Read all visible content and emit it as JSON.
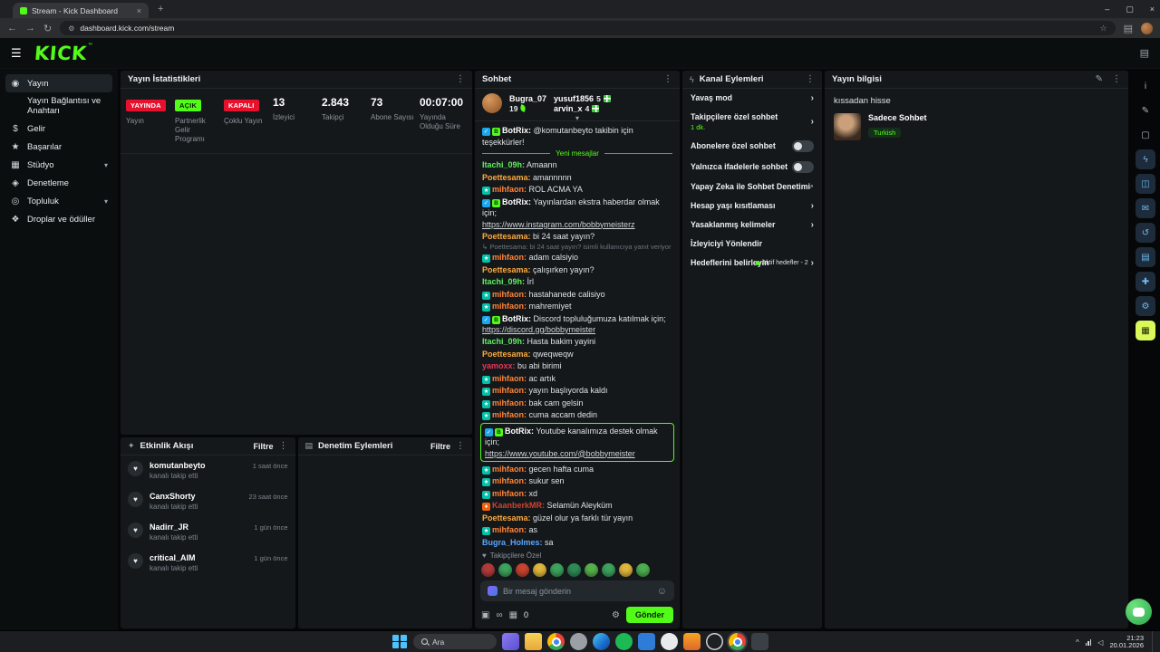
{
  "browser": {
    "tab_title": "Stream - Kick Dashboard",
    "url": "dashboard.kick.com/stream"
  },
  "icons": {
    "back": "←",
    "forward": "→",
    "refresh": "↻",
    "site": "⚙",
    "star": "☆",
    "new_tab": "+",
    "close_tab": "×",
    "minimize": "–",
    "maximize": "▢",
    "close": "×",
    "hamburger": "☰",
    "layout": "▤",
    "dots": "⋮",
    "chevron_down": "▾",
    "activity": "✦",
    "moderation_grid": "▤",
    "actions_bolt": "ϟ",
    "pencil": "✎",
    "heart": "♥",
    "collapse": "▾",
    "smiley": "☺",
    "infinity": "∞",
    "calendar": "▦",
    "gear": "⚙",
    "identity": "▣",
    "caret_up": "^",
    "speaker": "◁"
  },
  "page_header": {
    "logo": "KICK",
    "logo_tm": "™"
  },
  "sidebar": {
    "items": [
      {
        "icon": "broadcast",
        "label": "Yayın",
        "state": "active"
      },
      {
        "label": "Yayın Bağlantısı ve Anahtarı"
      },
      {
        "icon": "revenue",
        "label": "Gelir"
      },
      {
        "icon": "achievements",
        "label": "Başarılar"
      },
      {
        "icon": "studio",
        "label": "Stüdyo",
        "chevron": true
      },
      {
        "icon": "moderation",
        "label": "Denetleme"
      },
      {
        "icon": "community",
        "label": "Topluluk",
        "chevron": true
      },
      {
        "icon": "drops",
        "label": "Droplar ve ödüller"
      }
    ]
  },
  "stats": {
    "title": "Yayın İstatistikleri",
    "items": [
      {
        "badge": "YAYINDA",
        "badge_type": "red",
        "label": "Yayın"
      },
      {
        "badge": "AÇIK",
        "badge_type": "green",
        "label": "Partnerlik Gelir Programı"
      },
      {
        "badge": "KAPALI",
        "badge_type": "red",
        "label": "Çoklu Yayın"
      },
      {
        "value": "13",
        "label": "İzleyici"
      },
      {
        "value": "2.843",
        "label": "Takipçi"
      },
      {
        "value": "73",
        "label": "Abone Sayısı"
      },
      {
        "value": "00:07:00",
        "label": "Yayında Olduğu Süre"
      }
    ]
  },
  "activity": {
    "title": "Etkinlik Akışı",
    "filter": "Filtre",
    "events": [
      {
        "user": "komutanbeyto",
        "action": "kanalı takip etti",
        "time": "1 saat önce"
      },
      {
        "user": "CanxShorty",
        "action": "kanalı takip etti",
        "time": "23 saat önce"
      },
      {
        "user": "Nadirr_JR",
        "action": "kanalı takip etti",
        "time": "1 gün önce"
      },
      {
        "user": "critical_AIM",
        "action": "kanalı takip etti",
        "time": "1 gün önce"
      }
    ]
  },
  "moderation": {
    "title": "Denetim Eylemleri",
    "filter": "Filtre"
  },
  "chat": {
    "title": "Sohbet",
    "leaderboard": {
      "top_user": "Bugra_07",
      "top_value": "19",
      "others": [
        {
          "name": "yusuf1856",
          "value": "5"
        },
        {
          "name": "arvin_x",
          "value": "4"
        }
      ]
    },
    "messages": [
      {
        "type": "bot",
        "user": "BotRix",
        "text": "@komutanbeyto takibin için teşekkürler!"
      },
      {
        "type": "divider",
        "text": "Yeni mesajlar"
      },
      {
        "type": "msg",
        "user": "Itachi_09h",
        "color": "#5ef15e",
        "text": "Amaann"
      },
      {
        "type": "msg",
        "user": "Poettesama",
        "color": "#fcaa3d",
        "text": "amannnnn"
      },
      {
        "type": "msg",
        "user": "mihfaon",
        "color": "#ff8438",
        "badge": "sub",
        "text": "ROL ACMA YA"
      },
      {
        "type": "bot",
        "user": "BotRix",
        "text": "Yayınlardan ekstra haberdar olmak için;",
        "link": "https://www.instagram.com/bobbymeisterz"
      },
      {
        "type": "msg",
        "user": "Poettesama",
        "color": "#fcaa3d",
        "text": "bi 24 saat yayın?"
      },
      {
        "type": "msg",
        "user": "mihfaon",
        "color": "#ff8438",
        "badge": "sub",
        "reply": "Poettesama: bi 24 saat yayın? isimli kullanıcıya yanıt veriyor",
        "text": "adam calsiyio"
      },
      {
        "type": "msg",
        "user": "Poettesama",
        "color": "#fcaa3d",
        "text": "çalışırken yayın?"
      },
      {
        "type": "msg",
        "user": "Itachi_09h",
        "color": "#5ef15e",
        "text": "İrl"
      },
      {
        "type": "msg",
        "user": "mihfaon",
        "color": "#ff8438",
        "badge": "sub",
        "text": "hastahanede calisiyo"
      },
      {
        "type": "msg",
        "user": "mihfaon",
        "color": "#ff8438",
        "badge": "sub",
        "text": "mahremiyet"
      },
      {
        "type": "bot",
        "user": "BotRix",
        "text": "Discord topluluğumuza katılmak için;",
        "link": "https://discord.gg/bobbymeister"
      },
      {
        "type": "msg",
        "user": "Itachi_09h",
        "color": "#5ef15e",
        "text": "Hasta bakim yayini"
      },
      {
        "type": "msg",
        "user": "Poettesama",
        "color": "#fcaa3d",
        "text": "qweqweqw"
      },
      {
        "type": "msg",
        "user": "yamoxx",
        "color": "#e0395c",
        "text": "bu abi birimi"
      },
      {
        "type": "msg",
        "user": "mihfaon",
        "color": "#ff8438",
        "badge": "sub",
        "text": "ac artık"
      },
      {
        "type": "msg",
        "user": "mihfaon",
        "color": "#ff8438",
        "badge": "sub",
        "text": "yayın başlıyorda kaldı"
      },
      {
        "type": "msg",
        "user": "mihfaon",
        "color": "#ff8438",
        "badge": "sub",
        "text": "bak cam gelsin"
      },
      {
        "type": "msg",
        "user": "mihfaon",
        "color": "#ff8438",
        "badge": "sub",
        "text": "cuma accam dedin"
      },
      {
        "type": "bot",
        "user": "BotRix",
        "highlight": true,
        "text": "Youtube kanalımıza destek olmak için;",
        "link": "https://www.youtube.com/@bobbymeister"
      },
      {
        "type": "msg",
        "user": "mihfaon",
        "color": "#ff8438",
        "badge": "sub",
        "text": "gecen hafta cuma"
      },
      {
        "type": "msg",
        "user": "mihfaon",
        "color": "#ff8438",
        "badge": "sub",
        "text": "sukur sen"
      },
      {
        "type": "msg",
        "user": "mihfaon",
        "color": "#ff8438",
        "badge": "sub",
        "text": "xd"
      },
      {
        "type": "msg",
        "user": "KaanberkMR",
        "color": "#cf4330",
        "badge": "fire",
        "text": "Selamün Aleyküm"
      },
      {
        "type": "msg",
        "user": "Poettesama",
        "color": "#fcaa3d",
        "text": "güzel olur ya farklı tür yayın"
      },
      {
        "type": "msg",
        "user": "mihfaon",
        "color": "#ff8438",
        "badge": "sub",
        "text": "as"
      },
      {
        "type": "msg",
        "user": "Bugra_Holmes",
        "color": "#58a6ff",
        "text": "sa"
      }
    ],
    "followers_only": "Takipçilere Özel",
    "emotes": [
      {
        "color": "#b23b3b"
      },
      {
        "color": "#3da35d"
      },
      {
        "color": "#c8442f"
      },
      {
        "color": "#e0b73c"
      },
      {
        "color": "#3da35d"
      },
      {
        "color": "#2e8b57"
      },
      {
        "color": "#57b24a"
      },
      {
        "color": "#3da35d"
      },
      {
        "color": "#e0b73c"
      },
      {
        "color": "#4caf50"
      }
    ],
    "input_placeholder": "Bir mesaj gönderin",
    "char_count": "0",
    "send": "Gönder"
  },
  "channel_actions": {
    "title": "Kanal Eylemleri",
    "items": [
      {
        "label": "Yavaş mod",
        "control": "chevron"
      },
      {
        "label": "Takipçilere özel sohbet",
        "subtitle": "1 dk.",
        "control": "chevron"
      },
      {
        "label": "Abonelere özel sohbet",
        "control": "toggle"
      },
      {
        "label": "Yalnızca ifadelerle sohbet",
        "control": "toggle"
      },
      {
        "label": "Yapay Zeka ile Sohbet Denetimi",
        "control": "ext"
      },
      {
        "label": "Hesap yaşı kısıtlaması",
        "control": "chevron"
      },
      {
        "label": "Yasaklanmış kelimeler",
        "control": "chevron"
      },
      {
        "label": "İzleyiciyi Yönlendir",
        "control": "none"
      },
      {
        "label": "Hedeflerini belirleyin",
        "status": "Aktif hedefler - 2",
        "control": "chevron"
      }
    ]
  },
  "stream_info": {
    "title": "Yayın bilgisi",
    "stream_title": "kıssadan hisse",
    "category": "Sadece Sohbet",
    "tag": "Turkish"
  },
  "right_strip": {
    "items": [
      {
        "name": "info",
        "kind": "ghost"
      },
      {
        "name": "edit",
        "kind": "ghost"
      },
      {
        "name": "popout",
        "kind": "ghost"
      },
      {
        "name": "shortcuts",
        "kind": "tile"
      },
      {
        "name": "scenes",
        "kind": "tile"
      },
      {
        "name": "messages",
        "kind": "tile"
      },
      {
        "name": "replay",
        "kind": "tile"
      },
      {
        "name": "activity",
        "kind": "tile"
      },
      {
        "name": "tools",
        "kind": "tile"
      },
      {
        "name": "settings",
        "kind": "tile"
      },
      {
        "name": "theme",
        "kind": "on"
      }
    ]
  },
  "taskbar": {
    "search": "Ara",
    "time": "21:23",
    "date": "20.01.2026",
    "apps": [
      {
        "name": "camera-app",
        "kind": "cam"
      },
      {
        "name": "file-explorer",
        "kind": "folder"
      },
      {
        "name": "chrome",
        "kind": "chrome"
      },
      {
        "name": "screenshot-tool",
        "kind": "gray"
      },
      {
        "name": "edge",
        "kind": "edge"
      },
      {
        "name": "spotify",
        "kind": "spotify"
      },
      {
        "name": "vscode",
        "kind": "code"
      },
      {
        "name": "whiteboard",
        "kind": "white"
      },
      {
        "name": "security",
        "kind": "shield"
      },
      {
        "name": "obs",
        "kind": "obs"
      },
      {
        "name": "chrome-active",
        "kind": "chrome",
        "state": "active"
      },
      {
        "name": "terminal",
        "kind": "term"
      }
    ]
  }
}
